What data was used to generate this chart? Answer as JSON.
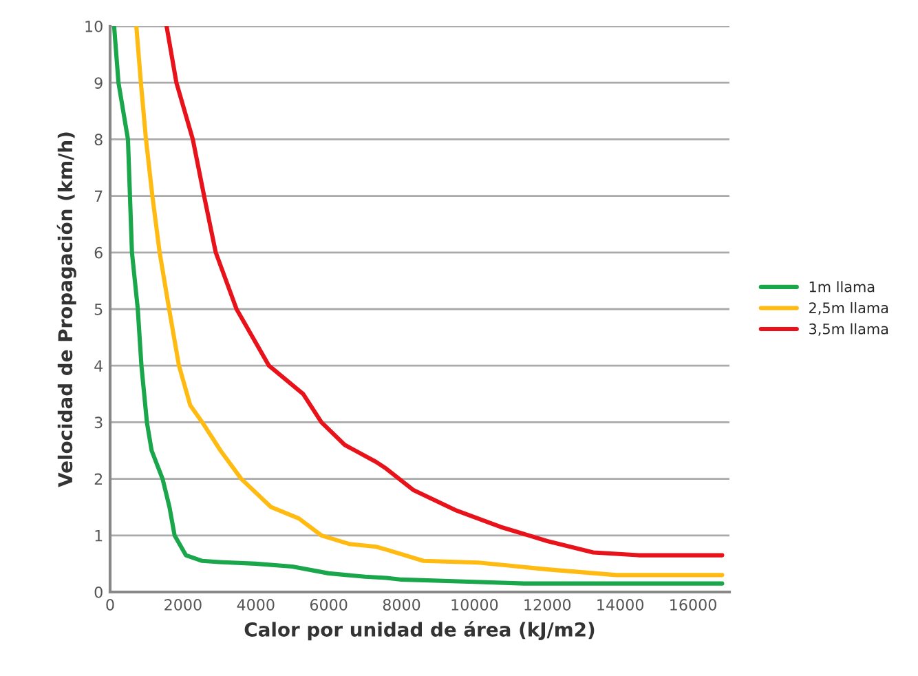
{
  "chart_data": {
    "type": "line",
    "xlabel": "Calor por unidad de área (kJ/m2)",
    "ylabel": "Velocidad de Propagación (km/h)",
    "xlim": [
      0,
      17000
    ],
    "xticks": [
      0,
      2000,
      4000,
      6000,
      8000,
      10000,
      12000,
      14000,
      16000
    ],
    "ylim": [
      0,
      10
    ],
    "yticks": [
      0,
      1,
      2,
      3,
      4,
      5,
      6,
      7,
      8,
      9,
      10
    ],
    "grid": "y",
    "legend": "right",
    "marker": "none",
    "line_style": "solid",
    "series": [
      {
        "name": "1m llama",
        "color": "#1aa64a",
        "x": [
          110,
          230,
          490,
          600,
          760,
          860,
          1010,
          1140,
          1440,
          1630,
          1770,
          2080,
          2530,
          3000,
          4000,
          5000,
          6000,
          7000,
          7580,
          8000,
          10000,
          11360,
          12000,
          14000,
          16800
        ],
        "values": [
          10,
          9,
          8,
          6,
          5,
          4,
          3,
          2.5,
          2,
          1.5,
          1,
          0.65,
          0.55,
          0.53,
          0.5,
          0.45,
          0.33,
          0.27,
          0.25,
          0.22,
          0.18,
          0.15,
          0.15,
          0.15,
          0.15
        ]
      },
      {
        "name": "2,5m llama",
        "color": "#ffbb11",
        "x": [
          720,
          845,
          985,
          1160,
          1360,
          1620,
          1890,
          2200,
          2530,
          3030,
          3600,
          4420,
          5180,
          5800,
          6560,
          7300,
          7580,
          8600,
          10110,
          12000,
          13900,
          16800
        ],
        "values": [
          10,
          9,
          8,
          7,
          6,
          5,
          4,
          3.3,
          3,
          2.5,
          2,
          1.5,
          1.3,
          1,
          0.85,
          0.8,
          0.75,
          0.55,
          0.52,
          0.4,
          0.3,
          0.3
        ]
      },
      {
        "name": "3,5m llama",
        "color": "#e8121a",
        "x": [
          1550,
          1820,
          2270,
          2580,
          2900,
          3470,
          4360,
          5300,
          5800,
          6440,
          7300,
          7580,
          8330,
          9470,
          10720,
          12000,
          13260,
          14500,
          16800
        ],
        "values": [
          10,
          9,
          8,
          7,
          6,
          5,
          4,
          3.5,
          3,
          2.6,
          2.3,
          2.18,
          1.8,
          1.45,
          1.15,
          0.9,
          0.7,
          0.65,
          0.65
        ]
      }
    ]
  }
}
